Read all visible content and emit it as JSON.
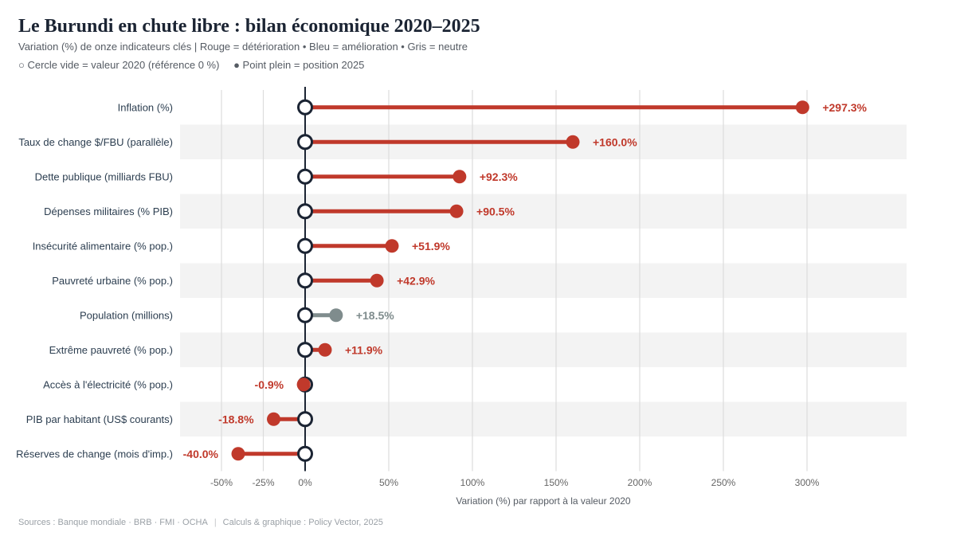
{
  "header": {
    "title": "Le Burundi en chute libre : bilan économique 2020–2025",
    "subtitle": "Variation (%) de onze indicateurs clés  |  Rouge = détérioration  •  Bleu = amélioration  •  Gris = neutre",
    "legend_hollow": "○ Cercle vide = valeur 2020 (référence 0 %)",
    "legend_filled": "● Point plein = position 2025"
  },
  "footer": {
    "sources": "Sources : Banque mondiale · BRB · FMI · OCHA",
    "credits": "Calculs & graphique : Policy Vector, 2025"
  },
  "colors": {
    "deterioration": "#c0392b",
    "neutral": "#7f8c8d",
    "text": "#2c3e50",
    "baseline": "#1b2433"
  },
  "chart_data": {
    "type": "dumbbell",
    "xlabel": "Variation (%) par rapport à la valeur 2020",
    "xlim": [
      -50,
      360
    ],
    "xticks": [
      -50,
      -25,
      0,
      50,
      100,
      150,
      200,
      250,
      300
    ],
    "xtick_labels": [
      "-50%",
      "-25%",
      "0%",
      "50%",
      "100%",
      "150%",
      "200%",
      "250%",
      "300%"
    ],
    "baseline": 0,
    "rows": [
      {
        "label": "Inflation (%)",
        "value": 297.3,
        "value_label": "+297.3%",
        "status": "deterioration"
      },
      {
        "label": "Taux de change $/FBU (parallèle)",
        "value": 160.0,
        "value_label": "+160.0%",
        "status": "deterioration"
      },
      {
        "label": "Dette publique (milliards FBU)",
        "value": 92.3,
        "value_label": "+92.3%",
        "status": "deterioration"
      },
      {
        "label": "Dépenses militaires (% PIB)",
        "value": 90.5,
        "value_label": "+90.5%",
        "status": "deterioration"
      },
      {
        "label": "Insécurité alimentaire (% pop.)",
        "value": 51.9,
        "value_label": "+51.9%",
        "status": "deterioration"
      },
      {
        "label": "Pauvreté urbaine (% pop.)",
        "value": 42.9,
        "value_label": "+42.9%",
        "status": "deterioration"
      },
      {
        "label": "Population (millions)",
        "value": 18.5,
        "value_label": "+18.5%",
        "status": "neutral"
      },
      {
        "label": "Extrême pauvreté (% pop.)",
        "value": 11.9,
        "value_label": "+11.9%",
        "status": "deterioration"
      },
      {
        "label": "Accès à l'électricité (% pop.)",
        "value": -0.9,
        "value_label": "-0.9%",
        "status": "deterioration"
      },
      {
        "label": "PIB par habitant (US$ courants)",
        "value": -18.8,
        "value_label": "-18.8%",
        "status": "deterioration"
      },
      {
        "label": "Réserves de change (mois d'imp.)",
        "value": -40.0,
        "value_label": "-40.0%",
        "status": "deterioration"
      }
    ]
  }
}
